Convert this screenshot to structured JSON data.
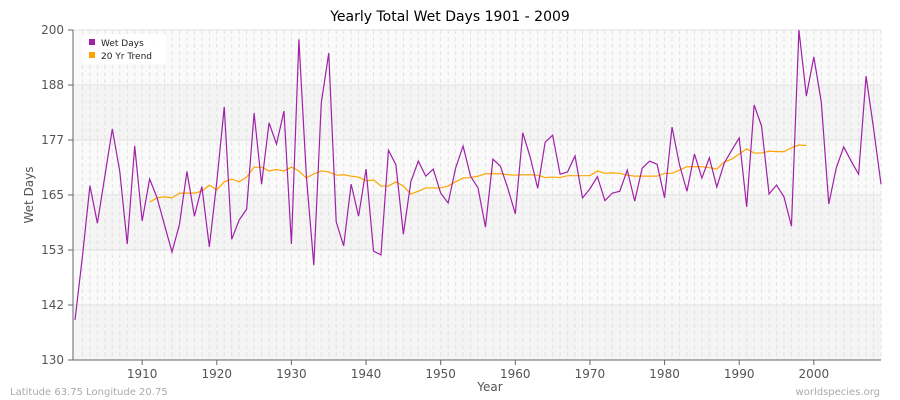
{
  "chart_data": {
    "type": "line",
    "title": "Yearly Total Wet Days 1901 - 2009",
    "xlabel": "Year",
    "ylabel": "Wet Days",
    "xlim": [
      1901,
      2009
    ],
    "ylim": [
      130,
      200
    ],
    "y_ticks": [
      "130",
      "142",
      "153",
      "165",
      "177",
      "188",
      "200"
    ],
    "x_ticks": [
      "1910",
      "1920",
      "1930",
      "1940",
      "1950",
      "1960",
      "1970",
      "1980",
      "1990",
      "2000"
    ],
    "grid": true,
    "legend_position": "top-left",
    "series": [
      {
        "name": "Wet Days",
        "color": "#a020a8",
        "x_start": 1901,
        "values": [
          138.5,
          152,
          167,
          159,
          169,
          179,
          170,
          154.6,
          175.4,
          159.5,
          168.4,
          164.4,
          158.6,
          152.9,
          158.8,
          170,
          160.5,
          166.8,
          154,
          167.8,
          183.7,
          155.6,
          159.7,
          162,
          182.4,
          167.3,
          180.3,
          175.8,
          182.8,
          154.6,
          198,
          169,
          150.1,
          184.5,
          195.1,
          159.3,
          154.2,
          167.3,
          160.5,
          170.5,
          153.1,
          152.3,
          174.5,
          171.4,
          156.7,
          167.8,
          172.2,
          169,
          170.5,
          165.4,
          163.3,
          170.7,
          175.4,
          169,
          166.5,
          158.2,
          172.6,
          171.1,
          166.4,
          161,
          178.2,
          173,
          166.4,
          176.2,
          177.7,
          169.4,
          169.9,
          173.3,
          164.4,
          166.3,
          168.9,
          163.8,
          165.4,
          165.8,
          170.3,
          163.7,
          170.7,
          172.2,
          171.5,
          164.4,
          179.4,
          171.4,
          165.8,
          173.7,
          168.6,
          172.9,
          166.7,
          171.8,
          174.5,
          177.1,
          162.5,
          184.1,
          179.6,
          165.2,
          167.1,
          164.6,
          158.4,
          200,
          186,
          194.3,
          184.7,
          163.1,
          170.7,
          175.2,
          172.2,
          169.4,
          190.2,
          179.2,
          167.3
        ]
      },
      {
        "name": "20 Yr Trend",
        "color": "#ffa500",
        "x_start": 1911,
        "values": [
          163.5,
          164.4,
          164.6,
          164.4,
          165.4,
          165.4,
          165.4,
          165.8,
          167.1,
          166.1,
          167.8,
          168.4,
          167.8,
          168.8,
          170.9,
          170.9,
          170.1,
          170.4,
          170.1,
          170.9,
          170.1,
          168.6,
          169.5,
          170.1,
          169.9,
          169.2,
          169.3,
          169,
          168.8,
          168,
          168.2,
          166.9,
          166.9,
          167.8,
          166.9,
          165.2,
          165.8,
          166.5,
          166.5,
          166.5,
          166.9,
          167.8,
          168.6,
          168.7,
          169,
          169.5,
          169.5,
          169.5,
          169.3,
          169.2,
          169.3,
          169.3,
          169.2,
          168.7,
          168.8,
          168.7,
          169.1,
          169.1,
          169.1,
          169.1,
          170.1,
          169.6,
          169.7,
          169.6,
          169.2,
          169,
          169,
          169,
          169,
          169.6,
          169.6,
          170.3,
          171,
          171,
          171,
          170.8,
          170.5,
          172,
          172.6,
          173.7,
          174.8,
          173.9,
          173.9,
          174.3,
          174.2,
          174.2,
          175,
          175.6,
          175.5
        ]
      }
    ]
  },
  "footer": {
    "location": "Latitude 63.75 Longitude 20.75",
    "credit": "worldspecies.org"
  }
}
